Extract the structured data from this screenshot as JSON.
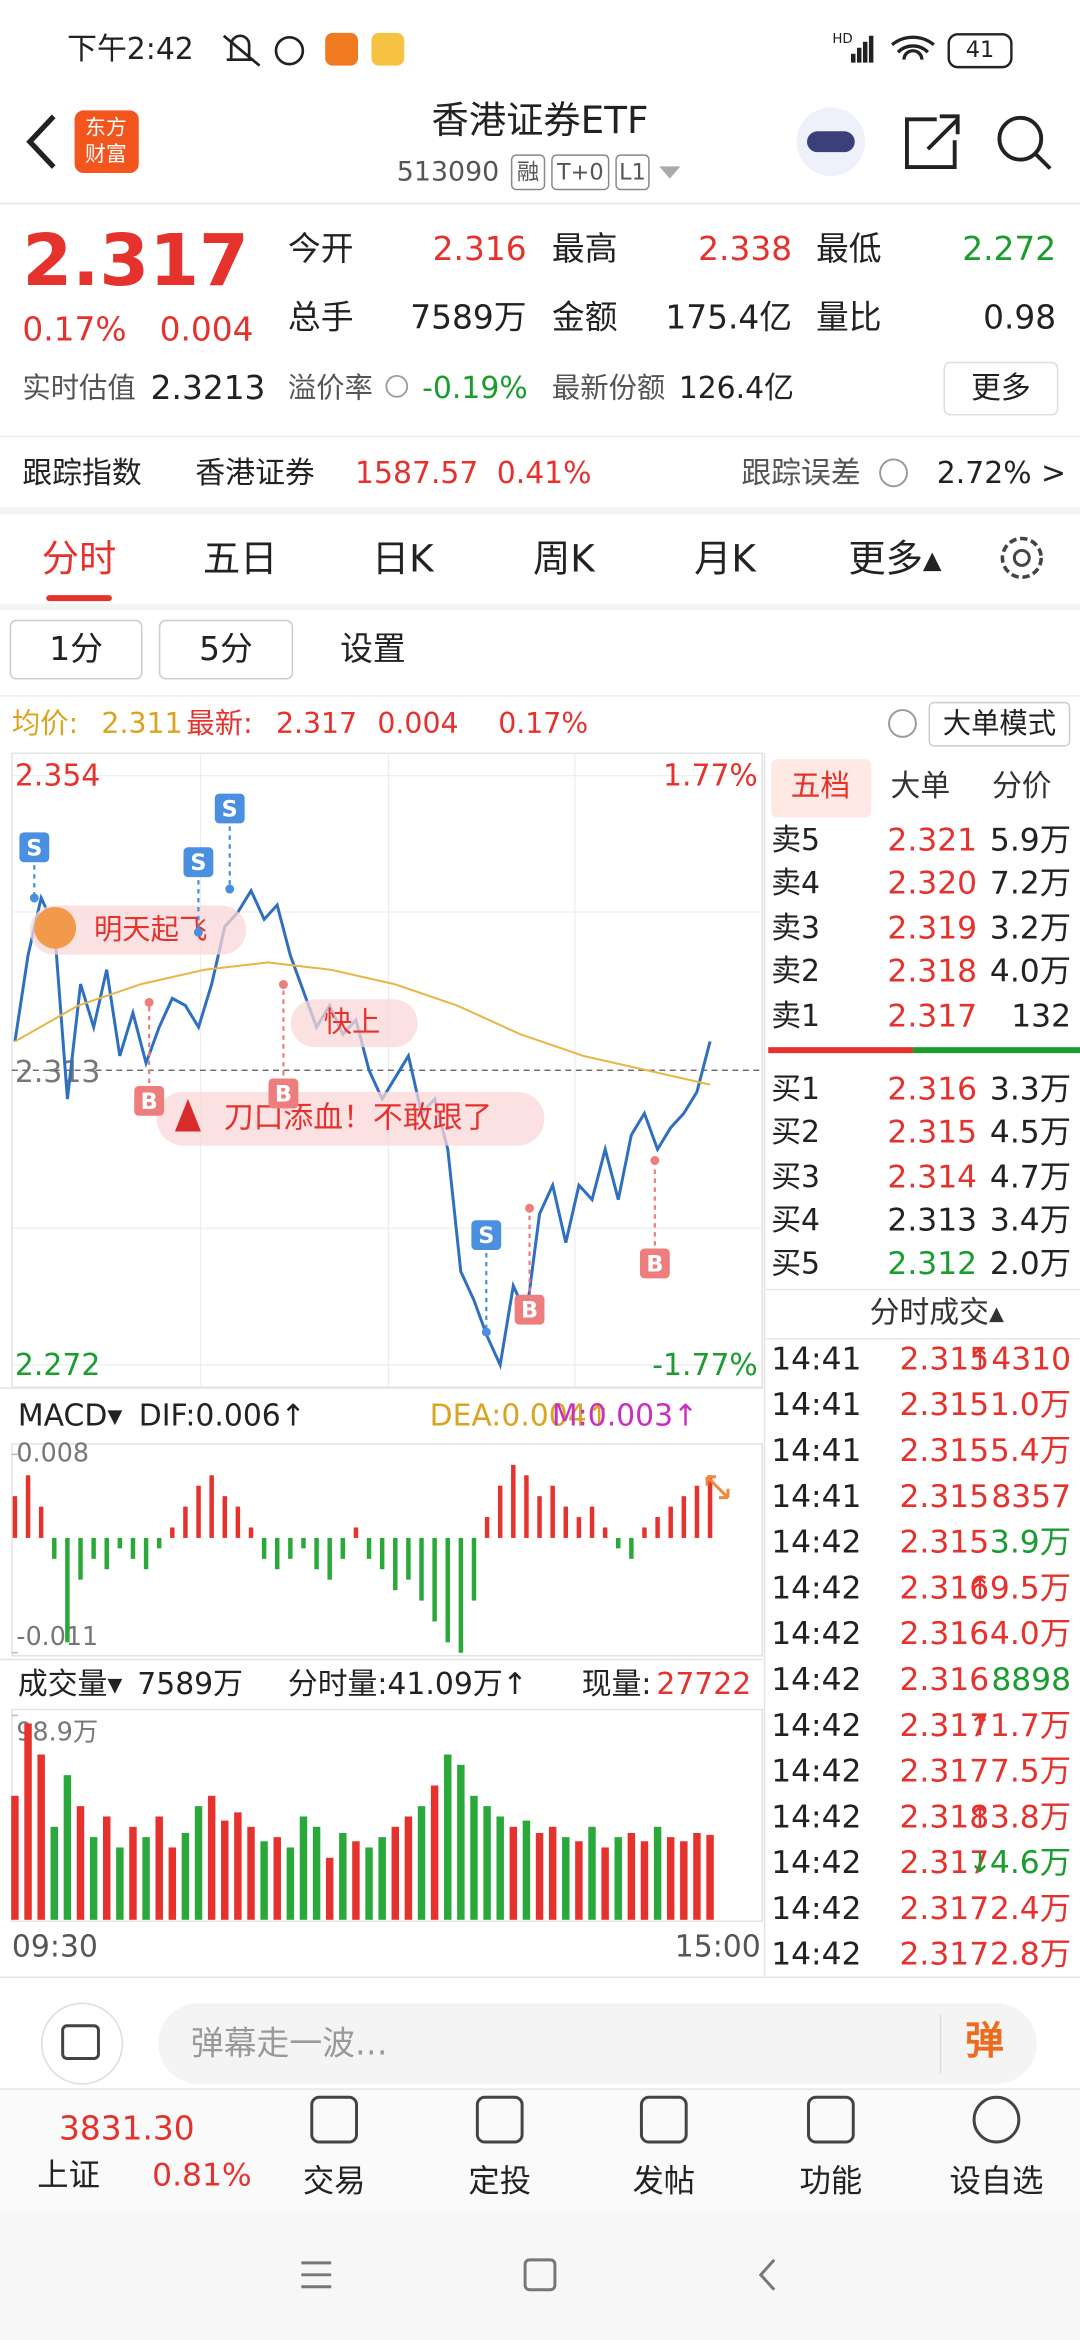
{
  "status": {
    "time": "下午2:42",
    "net": "HD",
    "battery": "41"
  },
  "header": {
    "logo": [
      "东方",
      "财富"
    ],
    "title": "香港证券ETF",
    "code": "513090",
    "tags": [
      "融",
      "T+0",
      "L1"
    ]
  },
  "quote": {
    "price": "2.317",
    "pct": "0.17%",
    "chg": "0.004",
    "fields": [
      {
        "label": "今开",
        "value": "2.316"
      },
      {
        "label": "最高",
        "value": "2.338"
      },
      {
        "label": "最低",
        "value": "2.272"
      },
      {
        "label": "总手",
        "value": "7589万"
      },
      {
        "label": "金额",
        "value": "175.4亿"
      },
      {
        "label": "量比",
        "value": "0.98"
      }
    ],
    "est_label": "实时估值",
    "est": "2.3213",
    "prem_label": "溢价率",
    "prem": "-0.19%",
    "share_label": "最新份额",
    "share": "126.4亿",
    "more": "更多"
  },
  "track": {
    "label": "跟踪指数",
    "name": "香港证券",
    "value": "1587.57",
    "pct": "0.41%",
    "err_label": "跟踪误差",
    "err": "2.72% >"
  },
  "tabs": [
    "分时",
    "五日",
    "日K",
    "周K",
    "月K",
    "更多▴"
  ],
  "subtabs": [
    "1分",
    "5分",
    "设置"
  ],
  "info": {
    "avg_label": "均价:",
    "avg": "2.311",
    "last_label": "最新:",
    "last": "2.317",
    "chg": "0.004",
    "pct": "0.17%",
    "mode": "大单模式"
  },
  "chart_data": [
    {
      "type": "line",
      "ylim": [
        2.272,
        2.354
      ],
      "yticks": [
        2.354,
        2.313,
        2.272
      ],
      "pct_labels": [
        "1.77%",
        "-1.77%"
      ],
      "series": [
        {
          "color": "#2f6fc0",
          "values": [
            2.317,
            2.329,
            2.337,
            2.333,
            2.309,
            2.325,
            2.319,
            2.327,
            2.315,
            2.321,
            2.314,
            2.319,
            2.323,
            2.322,
            2.319,
            2.325,
            2.333,
            2.335,
            2.338,
            2.334,
            2.336,
            2.329,
            2.324,
            2.319,
            2.322,
            2.318,
            2.32,
            2.313,
            2.309,
            2.312,
            2.315,
            2.307,
            2.309,
            2.302,
            2.285,
            2.281,
            2.276,
            2.272,
            2.283,
            2.279,
            2.293,
            2.297,
            2.289,
            2.297,
            2.295,
            2.302,
            2.295,
            2.304,
            2.307,
            2.302,
            2.305,
            2.307,
            2.31,
            2.317
          ]
        },
        {
          "color": "#e8b64a",
          "values": [
            2.317,
            2.322,
            2.325,
            2.327,
            2.328,
            2.327,
            2.325,
            2.322,
            2.318,
            2.315,
            2.313,
            2.311
          ]
        }
      ],
      "annotations": [
        "明天起飞",
        "快上",
        "刀口添血！不敢跟了"
      ],
      "markers": [
        "S",
        "S",
        "S",
        "S",
        "B",
        "B",
        "B",
        "B"
      ]
    },
    {
      "type": "bar",
      "label": "MACD▾",
      "dif": "DIF:0.006↑",
      "dea": "DEA:0.004↑",
      "m": "M:0.003↑",
      "ylim": [
        -0.011,
        0.008
      ],
      "yticks": [
        0.008,
        -0.011
      ],
      "values": [
        0.004,
        0.006,
        0.003,
        -0.002,
        -0.01,
        -0.004,
        -0.002,
        -0.003,
        -0.001,
        -0.002,
        -0.003,
        -0.001,
        0.001,
        0.003,
        0.005,
        0.006,
        0.004,
        0.003,
        0.001,
        -0.002,
        -0.003,
        -0.002,
        -0.001,
        -0.003,
        -0.004,
        -0.002,
        0.001,
        -0.002,
        -0.003,
        -0.005,
        -0.004,
        -0.006,
        -0.008,
        -0.01,
        -0.011,
        -0.006,
        0.002,
        0.005,
        0.007,
        0.006,
        0.004,
        0.005,
        0.003,
        0.002,
        0.003,
        0.001,
        -0.001,
        -0.002,
        0.001,
        0.002,
        0.003,
        0.004,
        0.005,
        0.006
      ]
    },
    {
      "type": "bar",
      "label": "成交量▾",
      "total": "7589万",
      "cur": "分时量:41.09万↑",
      "now_label": "现量:",
      "now": "27722",
      "ylim": [
        0,
        98.9
      ],
      "yticks": [
        {
          "value": 98.9,
          "label": "98.9万"
        }
      ],
      "xlabels": [
        "09:30",
        "15:00"
      ],
      "values": [
        60,
        95,
        80,
        45,
        70,
        55,
        40,
        50,
        35,
        45,
        40,
        50,
        35,
        42,
        55,
        60,
        48,
        52,
        45,
        38,
        40,
        35,
        50,
        45,
        30,
        42,
        38,
        35,
        40,
        45,
        50,
        55,
        65,
        80,
        75,
        60,
        55,
        50,
        45,
        48,
        42,
        45,
        40,
        38,
        45,
        35,
        40,
        42,
        38,
        45,
        40,
        38,
        42,
        41.09
      ]
    }
  ],
  "book": {
    "tabs": [
      "五档",
      "大单",
      "分价"
    ],
    "sell": [
      [
        "卖5",
        "2.321",
        "5.9万"
      ],
      [
        "卖4",
        "2.320",
        "7.2万"
      ],
      [
        "卖3",
        "2.319",
        "3.2万"
      ],
      [
        "卖2",
        "2.318",
        "4.0万"
      ],
      [
        "卖1",
        "2.317",
        "132"
      ]
    ],
    "buy": [
      [
        "买1",
        "2.316",
        "3.3万"
      ],
      [
        "买2",
        "2.315",
        "4.5万"
      ],
      [
        "买3",
        "2.314",
        "4.7万"
      ],
      [
        "买4",
        "2.313",
        "3.4万"
      ],
      [
        "买5",
        "2.312",
        "2.0万"
      ]
    ]
  },
  "trades": {
    "title": "分时成交▴",
    "rows": [
      {
        "time": "14:41",
        "price": "2.315",
        "arrow": "↑",
        "vol": "4310",
        "dir": "buy"
      },
      {
        "time": "14:41",
        "price": "2.315",
        "vol": "1.0万",
        "dir": "buy"
      },
      {
        "time": "14:41",
        "price": "2.315",
        "vol": "5.4万",
        "dir": "buy"
      },
      {
        "time": "14:41",
        "price": "2.315",
        "vol": "8357",
        "dir": "buy"
      },
      {
        "time": "14:42",
        "price": "2.315",
        "vol": "3.9万",
        "dir": "sell"
      },
      {
        "time": "14:42",
        "price": "2.316",
        "arrow": "↑",
        "vol": "9.5万",
        "dir": "buy"
      },
      {
        "time": "14:42",
        "price": "2.316",
        "vol": "4.0万",
        "dir": "buy"
      },
      {
        "time": "14:42",
        "price": "2.316",
        "vol": "8898",
        "dir": "sell"
      },
      {
        "time": "14:42",
        "price": "2.317",
        "arrow": "↑",
        "vol": "1.7万",
        "dir": "buy"
      },
      {
        "time": "14:42",
        "price": "2.317",
        "vol": "7.5万",
        "dir": "buy"
      },
      {
        "time": "14:42",
        "price": "2.318",
        "arrow": "↑",
        "vol": "3.8万",
        "dir": "buy"
      },
      {
        "time": "14:42",
        "price": "2.317",
        "arrow": "↓",
        "vol": "4.6万",
        "dir": "sell"
      },
      {
        "time": "14:42",
        "price": "2.317",
        "vol": "2.4万",
        "dir": "buy"
      },
      {
        "time": "14:42",
        "price": "2.317",
        "vol": "2.8万",
        "dir": "buy"
      }
    ]
  },
  "comment": {
    "placeholder": "弹幕走一波…",
    "btn": "弹"
  },
  "nav": {
    "index_value": "3831.30",
    "index_name": "上证",
    "index_pct": "0.81%",
    "items": [
      "交易",
      "定投",
      "发帖",
      "功能",
      "设自选"
    ]
  }
}
